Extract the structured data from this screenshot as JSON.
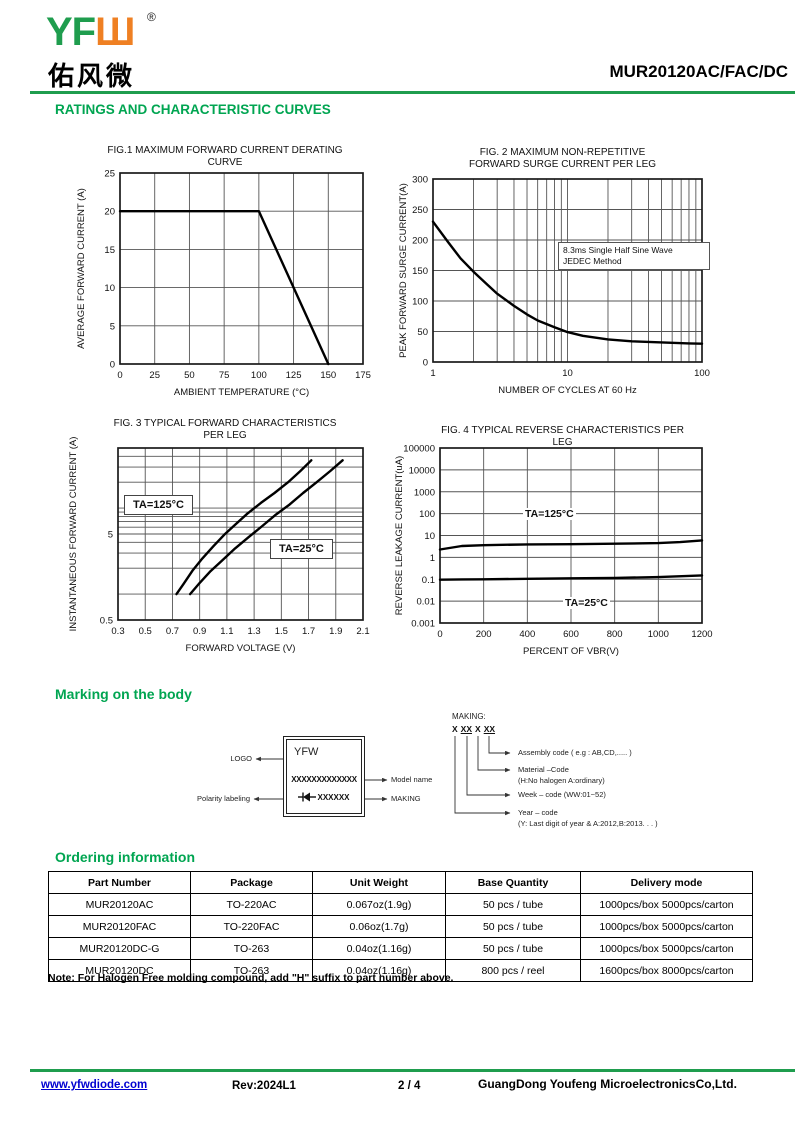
{
  "header": {
    "logo_green": "YF",
    "logo_orange": "Ш",
    "registered": "®",
    "logo_cn": "佑风微",
    "part_number": "MUR20120AC/FAC/DC"
  },
  "sections": {
    "ratings": "RATINGS AND CHARACTERISTIC CURVES",
    "marking": "Marking on the body",
    "ordering": "Ordering information"
  },
  "colors": {
    "brand_green": "#1f9d4e",
    "heading_green": "#00a551",
    "logo_orange": "#ef8023",
    "link_blue": "#0000d0"
  },
  "chart_data": [
    {
      "type": "line",
      "title_lines": [
        "FIG.1 MAXIMUM FORWARD CURRENT DERATING",
        "CURVE"
      ],
      "xlabel": "AMBIENT TEMPERATURE (°C)",
      "ylabel": "AVERAGE FORWARD CURRENT (A)",
      "x_axis": {
        "scale": "linear",
        "min": 0,
        "max": 175,
        "ticks": [
          0,
          25,
          50,
          75,
          100,
          125,
          150,
          175
        ],
        "gridlines": [
          25,
          50,
          75,
          100,
          125,
          150
        ]
      },
      "y_axis": {
        "scale": "linear",
        "min": 0,
        "max": 25,
        "ticks": [
          0,
          5,
          10,
          15,
          20,
          25
        ],
        "gridlines": [
          5,
          10,
          15,
          20
        ]
      },
      "series": [
        {
          "name": "derating-curve",
          "points": [
            [
              0,
              20
            ],
            [
              100,
              20
            ],
            [
              150,
              0
            ]
          ]
        }
      ]
    },
    {
      "type": "line",
      "title_lines": [
        "FIG. 2 MAXIMUM NON-REPETITIVE",
        "FORWARD SURGE CURRENT PER LEG"
      ],
      "xlabel": "NUMBER OF CYCLES AT 60 Hz",
      "ylabel": "PEAK FORWARD SURGE CURRENT(A)",
      "annotation_lines": [
        "8.3ms Single Half Sine Wave",
        "JEDEC Method"
      ],
      "x_axis": {
        "scale": "log",
        "min": 1,
        "max": 100,
        "ticks": [
          1,
          10,
          100
        ],
        "gridlines": [
          2,
          3,
          4,
          5,
          6,
          7,
          8,
          9,
          10,
          20,
          30,
          40,
          50,
          60,
          70,
          80,
          90
        ]
      },
      "y_axis": {
        "scale": "linear",
        "min": 0,
        "max": 300,
        "ticks": [
          0,
          50,
          100,
          150,
          200,
          250,
          300
        ],
        "gridlines": [
          50,
          100,
          150,
          200,
          250
        ]
      },
      "series": [
        {
          "name": "surge-current",
          "points": [
            [
              1,
              230
            ],
            [
              1.3,
              196
            ],
            [
              1.6,
              170
            ],
            [
              2,
              148
            ],
            [
              2.5,
              128
            ],
            [
              3,
              112
            ],
            [
              4,
              92
            ],
            [
              5,
              78
            ],
            [
              6,
              68
            ],
            [
              8,
              57
            ],
            [
              10,
              49
            ],
            [
              13,
              43
            ],
            [
              16,
              40
            ],
            [
              20,
              37
            ],
            [
              30,
              34
            ],
            [
              40,
              33
            ],
            [
              60,
              31.5
            ],
            [
              80,
              30.5
            ],
            [
              100,
              30
            ]
          ]
        }
      ]
    },
    {
      "type": "line",
      "title_lines": [
        "FIG. 3 TYPICAL FORWARD CHARACTERISTICS",
        "PER LEG"
      ],
      "xlabel": "FORWARD VOLTAGE (V)",
      "ylabel": "INSTANTANEOUS FORWARD CURRENT (A)",
      "x_axis": {
        "scale": "linear",
        "min": 0.3,
        "max": 2.1,
        "ticks": [
          0.3,
          0.5,
          0.7,
          0.9,
          1.1,
          1.3,
          1.5,
          1.7,
          1.9,
          2.1
        ],
        "gridlines": [
          0.5,
          0.7,
          0.9,
          1.1,
          1.3,
          1.5,
          1.7,
          1.9
        ]
      },
      "y_axis": {
        "scale": "log",
        "min": 0.5,
        "max": 50,
        "ticks": [
          0.5,
          5
        ],
        "gridlines": [
          1,
          2,
          3,
          4,
          5,
          6,
          7,
          8,
          9,
          10,
          20,
          30,
          40
        ]
      },
      "series": [
        {
          "name": "TA=125°C",
          "points": [
            [
              0.73,
              1
            ],
            [
              0.78,
              1.3
            ],
            [
              0.85,
              1.9
            ],
            [
              0.92,
              2.6
            ],
            [
              1.0,
              3.6
            ],
            [
              1.08,
              4.9
            ],
            [
              1.16,
              6.4
            ],
            [
              1.25,
              8.6
            ],
            [
              1.35,
              11.5
            ],
            [
              1.45,
              15
            ],
            [
              1.55,
              20
            ],
            [
              1.64,
              27
            ],
            [
              1.72,
              36
            ]
          ]
        },
        {
          "name": "TA=25°C",
          "points": [
            [
              0.83,
              1
            ],
            [
              0.9,
              1.35
            ],
            [
              0.98,
              1.85
            ],
            [
              1.07,
              2.5
            ],
            [
              1.16,
              3.4
            ],
            [
              1.26,
              4.6
            ],
            [
              1.36,
              6.2
            ],
            [
              1.46,
              8.4
            ],
            [
              1.56,
              11
            ],
            [
              1.66,
              15
            ],
            [
              1.76,
              20
            ],
            [
              1.86,
              27
            ],
            [
              1.95,
              36
            ]
          ]
        }
      ]
    },
    {
      "type": "line",
      "title_lines": [
        "FIG. 4 TYPICAL REVERSE CHARACTERISTICS PER",
        "LEG"
      ],
      "xlabel": "PERCENT OF VBR(V)",
      "ylabel": "REVERSE LEAKAGE CURRENT(uA)",
      "x_axis": {
        "scale": "linear",
        "min": 0,
        "max": 1200,
        "ticks": [
          0,
          200,
          400,
          600,
          800,
          1000,
          1200
        ],
        "gridlines": [
          200,
          400,
          600,
          800,
          1000
        ]
      },
      "y_axis": {
        "scale": "log",
        "min": 0.001,
        "max": 100000,
        "ticks": [
          0.001,
          0.01,
          0.1,
          1,
          10,
          100,
          1000,
          10000,
          100000
        ],
        "gridlines": [
          0.01,
          0.1,
          1,
          10,
          100,
          1000,
          10000
        ]
      },
      "series": [
        {
          "name": "TA=125°C",
          "points": [
            [
              0,
              2.3
            ],
            [
              100,
              3.3
            ],
            [
              200,
              3.6
            ],
            [
              400,
              3.9
            ],
            [
              600,
              4.0
            ],
            [
              800,
              4.2
            ],
            [
              1000,
              4.5
            ],
            [
              1100,
              5.0
            ],
            [
              1200,
              6.0
            ]
          ]
        },
        {
          "name": "TA=25°C",
          "points": [
            [
              0,
              0.095
            ],
            [
              100,
              0.098
            ],
            [
              200,
              0.1
            ],
            [
              400,
              0.105
            ],
            [
              600,
              0.11
            ],
            [
              800,
              0.115
            ],
            [
              1000,
              0.125
            ],
            [
              1200,
              0.15
            ]
          ]
        }
      ]
    }
  ],
  "marking": {
    "box": {
      "logo": "YFW",
      "model_row": "XXXXXXXXXXXXX",
      "making_row": "XXXXXX"
    },
    "labels": {
      "logo": "LOGO",
      "model": "Model name",
      "polarity": "Polarity labeling",
      "making": "MAKING"
    },
    "legend": {
      "title": "MAKING:",
      "groups": [
        "X",
        "XX",
        "X",
        "XX"
      ],
      "items": [
        {
          "line1": "Assembly code ( e.g : AB,CD,..... )",
          "line2": ""
        },
        {
          "line1": "Material –Code",
          "line2": "(H:No halogen   A:ordinary)"
        },
        {
          "line1": "Week – code (WW:01~52)",
          "line2": ""
        },
        {
          "line1": "Year – code",
          "line2": "(Y: Last digit of year & A:2012,B:2013. . . )"
        }
      ]
    }
  },
  "ordering": {
    "headers": [
      "Part Number",
      "Package",
      "Unit Weight",
      "Base Quantity",
      "Delivery mode"
    ],
    "rows": [
      [
        "MUR20120AC",
        "TO-220AC",
        "0.067oz(1.9g)",
        "50 pcs / tube",
        "1000pcs/box 5000pcs/carton"
      ],
      [
        "MUR20120FAC",
        "TO-220FAC",
        "0.06oz(1.7g)",
        "50 pcs / tube",
        "1000pcs/box 5000pcs/carton"
      ],
      [
        "MUR20120DC-G",
        "TO-263",
        "0.04oz(1.16g)",
        "50 pcs / tube",
        "1000pcs/box 5000pcs/carton"
      ],
      [
        "MUR20120DC",
        "TO-263",
        "0.04oz(1.16g)",
        "800 pcs / reel",
        "1600pcs/box  8000pcs/carton"
      ]
    ],
    "note": "Note: For Halogen Free molding compound, add \"H\" suffix to part number above."
  },
  "footer": {
    "website": "www.yfwdiode.com",
    "rev": "Rev:2024L1",
    "page": "2 / 4",
    "company": "GuangDong Youfeng MicroelectronicsCo,Ltd."
  }
}
